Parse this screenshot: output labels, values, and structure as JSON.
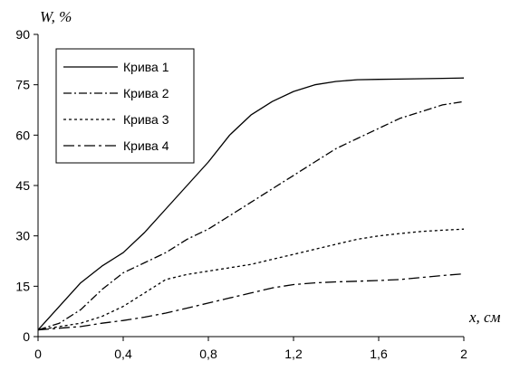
{
  "chart_data": {
    "type": "line",
    "title": "",
    "xlabel": "x, см",
    "ylabel": "W, %",
    "xlim": [
      0,
      2
    ],
    "ylim": [
      0,
      90
    ],
    "x_ticks": [
      {
        "value": 0,
        "label": "0"
      },
      {
        "value": 0.4,
        "label": "0,4"
      },
      {
        "value": 0.8,
        "label": "0,8"
      },
      {
        "value": 1.2,
        "label": "1,2"
      },
      {
        "value": 1.6,
        "label": "1,6"
      },
      {
        "value": 2,
        "label": "2"
      }
    ],
    "y_ticks": [
      {
        "value": 0,
        "label": "0"
      },
      {
        "value": 15,
        "label": "15"
      },
      {
        "value": 30,
        "label": "30"
      },
      {
        "value": 45,
        "label": "45"
      },
      {
        "value": 60,
        "label": "60"
      },
      {
        "value": 75,
        "label": "75"
      },
      {
        "value": 90,
        "label": "90"
      }
    ],
    "grid": false,
    "legend_position": "top-left",
    "series": [
      {
        "name": "Крива 1",
        "dash": "solid",
        "x": [
          0,
          0.1,
          0.2,
          0.3,
          0.4,
          0.5,
          0.6,
          0.7,
          0.8,
          0.9,
          1.0,
          1.1,
          1.2,
          1.3,
          1.4,
          1.5,
          1.6,
          1.7,
          1.8,
          1.9,
          2.0
        ],
        "y": [
          2,
          9,
          16,
          21,
          25,
          31,
          38,
          45,
          52,
          60,
          66,
          70,
          73,
          75,
          76,
          76.5,
          76.6,
          76.7,
          76.8,
          76.9,
          77
        ]
      },
      {
        "name": "Крива 2",
        "dash": "dash-dot",
        "x": [
          0,
          0.1,
          0.2,
          0.3,
          0.4,
          0.5,
          0.6,
          0.7,
          0.8,
          0.9,
          1.0,
          1.1,
          1.2,
          1.3,
          1.4,
          1.5,
          1.6,
          1.7,
          1.8,
          1.9,
          2.0
        ],
        "y": [
          2,
          4,
          8,
          14,
          19,
          22,
          25,
          29,
          32,
          36,
          40,
          44,
          48,
          52,
          56,
          59,
          62,
          65,
          67,
          69,
          70
        ]
      },
      {
        "name": "Крива 3",
        "dash": "dotted",
        "x": [
          0,
          0.1,
          0.2,
          0.3,
          0.4,
          0.5,
          0.6,
          0.7,
          0.8,
          0.9,
          1.0,
          1.1,
          1.2,
          1.3,
          1.4,
          1.5,
          1.6,
          1.7,
          1.8,
          1.9,
          2.0
        ],
        "y": [
          2,
          3,
          4,
          6,
          9,
          13,
          17,
          18.5,
          19.5,
          20.5,
          21.5,
          23,
          24.5,
          26,
          27.5,
          29,
          30,
          30.7,
          31.3,
          31.7,
          32
        ]
      },
      {
        "name": "Крива 4",
        "dash": "long-dash-dot",
        "x": [
          0,
          0.1,
          0.2,
          0.3,
          0.4,
          0.5,
          0.6,
          0.7,
          0.8,
          0.9,
          1.0,
          1.1,
          1.2,
          1.3,
          1.4,
          1.5,
          1.6,
          1.7,
          1.8,
          1.9,
          2.0
        ],
        "y": [
          2,
          2.5,
          3,
          4,
          4.8,
          5.8,
          7,
          8.5,
          10,
          11.5,
          13,
          14.5,
          15.5,
          16,
          16.3,
          16.5,
          16.7,
          17,
          17.6,
          18.2,
          18.7
        ]
      }
    ]
  }
}
